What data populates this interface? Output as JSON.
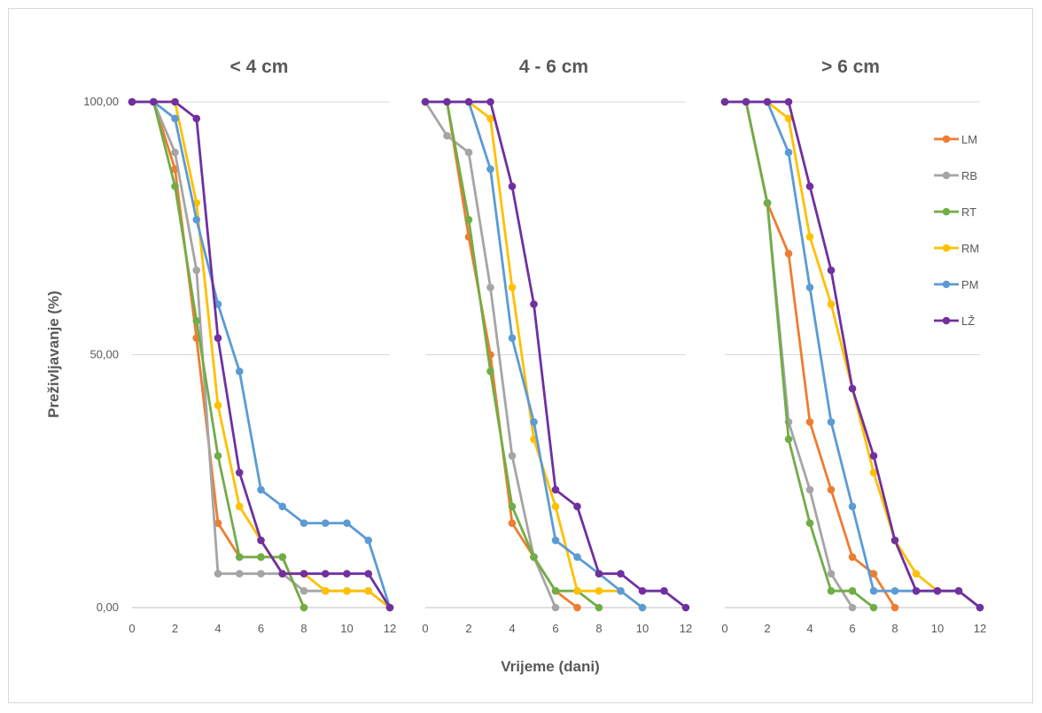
{
  "chart_data": [
    {
      "type": "line",
      "title": "< 4 cm",
      "x": [
        0,
        1,
        2,
        3,
        4,
        5,
        6,
        7,
        8,
        9,
        10,
        11,
        12
      ],
      "ylim": [
        0,
        100
      ],
      "series": [
        {
          "name": "LM",
          "color": "#ED7D31",
          "points": [
            [
              0,
              100
            ],
            [
              1,
              100
            ],
            [
              2,
              86.7
            ],
            [
              3,
              53.3
            ],
            [
              4,
              16.7
            ],
            [
              5,
              10
            ],
            [
              6,
              10
            ],
            [
              7,
              10
            ],
            [
              8,
              0
            ]
          ]
        },
        {
          "name": "RB",
          "color": "#A5A5A5",
          "points": [
            [
              0,
              100
            ],
            [
              1,
              100
            ],
            [
              2,
              90
            ],
            [
              3,
              66.7
            ],
            [
              4,
              6.7
            ],
            [
              5,
              6.7
            ],
            [
              6,
              6.7
            ],
            [
              7,
              6.7
            ],
            [
              8,
              3.3
            ],
            [
              9,
              3.3
            ],
            [
              10,
              3.3
            ],
            [
              11,
              3.3
            ],
            [
              12,
              0
            ]
          ]
        },
        {
          "name": "RT",
          "color": "#70AD47",
          "points": [
            [
              0,
              100
            ],
            [
              1,
              100
            ],
            [
              2,
              83.3
            ],
            [
              3,
              56.7
            ],
            [
              4,
              30
            ],
            [
              5,
              10
            ],
            [
              6,
              10
            ],
            [
              7,
              10
            ],
            [
              8,
              0
            ]
          ]
        },
        {
          "name": "RM",
          "color": "#FFC000",
          "points": [
            [
              0,
              100
            ],
            [
              1,
              100
            ],
            [
              2,
              100
            ],
            [
              3,
              80
            ],
            [
              4,
              40
            ],
            [
              5,
              20
            ],
            [
              6,
              13.3
            ],
            [
              7,
              6.7
            ],
            [
              8,
              6.7
            ],
            [
              9,
              3.3
            ],
            [
              10,
              3.3
            ],
            [
              11,
              3.3
            ],
            [
              12,
              0
            ]
          ]
        },
        {
          "name": "PM",
          "color": "#5B9BD5",
          "points": [
            [
              0,
              100
            ],
            [
              1,
              100
            ],
            [
              2,
              96.7
            ],
            [
              3,
              76.7
            ],
            [
              4,
              60
            ],
            [
              5,
              46.7
            ],
            [
              6,
              23.3
            ],
            [
              7,
              20
            ],
            [
              8,
              16.7
            ],
            [
              9,
              16.7
            ],
            [
              10,
              16.7
            ],
            [
              11,
              13.3
            ],
            [
              12,
              0
            ]
          ]
        },
        {
          "name": "LŽ",
          "color": "#7030A0",
          "points": [
            [
              0,
              100
            ],
            [
              1,
              100
            ],
            [
              2,
              100
            ],
            [
              3,
              96.7
            ],
            [
              4,
              53.3
            ],
            [
              5,
              26.7
            ],
            [
              6,
              13.3
            ],
            [
              7,
              6.7
            ],
            [
              8,
              6.7
            ],
            [
              9,
              6.7
            ],
            [
              10,
              6.7
            ],
            [
              11,
              6.7
            ],
            [
              12,
              0
            ]
          ]
        }
      ]
    },
    {
      "type": "line",
      "title": "4 - 6 cm",
      "x": [
        0,
        1,
        2,
        3,
        4,
        5,
        6,
        7,
        8,
        9,
        10,
        11,
        12
      ],
      "ylim": [
        0,
        100
      ],
      "series": [
        {
          "name": "LM",
          "color": "#ED7D31",
          "points": [
            [
              0,
              100
            ],
            [
              1,
              100
            ],
            [
              2,
              73.3
            ],
            [
              3,
              50
            ],
            [
              4,
              16.7
            ],
            [
              5,
              10
            ],
            [
              6,
              3.3
            ],
            [
              7,
              0
            ]
          ]
        },
        {
          "name": "RB",
          "color": "#A5A5A5",
          "points": [
            [
              0,
              100
            ],
            [
              1,
              93.3
            ],
            [
              2,
              90
            ],
            [
              3,
              63.3
            ],
            [
              4,
              30
            ],
            [
              5,
              10
            ],
            [
              6,
              0
            ]
          ]
        },
        {
          "name": "RT",
          "color": "#70AD47",
          "points": [
            [
              0,
              100
            ],
            [
              1,
              100
            ],
            [
              2,
              76.7
            ],
            [
              3,
              46.7
            ],
            [
              4,
              20
            ],
            [
              5,
              10
            ],
            [
              6,
              3.3
            ],
            [
              7,
              3.3
            ],
            [
              8,
              0
            ]
          ]
        },
        {
          "name": "RM",
          "color": "#FFC000",
          "points": [
            [
              0,
              100
            ],
            [
              1,
              100
            ],
            [
              2,
              100
            ],
            [
              3,
              96.7
            ],
            [
              4,
              63.3
            ],
            [
              5,
              33.3
            ],
            [
              6,
              20
            ],
            [
              7,
              3.3
            ],
            [
              8,
              3.3
            ],
            [
              9,
              3.3
            ],
            [
              10,
              0
            ]
          ]
        },
        {
          "name": "PM",
          "color": "#5B9BD5",
          "points": [
            [
              0,
              100
            ],
            [
              1,
              100
            ],
            [
              2,
              100
            ],
            [
              3,
              86.7
            ],
            [
              4,
              53.3
            ],
            [
              5,
              36.7
            ],
            [
              6,
              13.3
            ],
            [
              7,
              10
            ],
            [
              8,
              6.7
            ],
            [
              9,
              3.3
            ],
            [
              10,
              0
            ]
          ]
        },
        {
          "name": "LŽ",
          "color": "#7030A0",
          "points": [
            [
              0,
              100
            ],
            [
              1,
              100
            ],
            [
              2,
              100
            ],
            [
              3,
              100
            ],
            [
              4,
              83.3
            ],
            [
              5,
              60
            ],
            [
              6,
              23.3
            ],
            [
              7,
              20
            ],
            [
              8,
              6.7
            ],
            [
              9,
              6.7
            ],
            [
              10,
              3.3
            ],
            [
              11,
              3.3
            ],
            [
              12,
              0
            ]
          ]
        }
      ]
    },
    {
      "type": "line",
      "title": "> 6 cm",
      "x": [
        0,
        1,
        2,
        3,
        4,
        5,
        6,
        7,
        8,
        9,
        10,
        11,
        12
      ],
      "ylim": [
        0,
        100
      ],
      "series": [
        {
          "name": "LM",
          "color": "#ED7D31",
          "points": [
            [
              0,
              100
            ],
            [
              1,
              100
            ],
            [
              2,
              80
            ],
            [
              3,
              70
            ],
            [
              4,
              36.7
            ],
            [
              5,
              23.3
            ],
            [
              6,
              10
            ],
            [
              7,
              6.7
            ],
            [
              8,
              0
            ]
          ]
        },
        {
          "name": "RB",
          "color": "#A5A5A5",
          "points": [
            [
              0,
              100
            ],
            [
              1,
              100
            ],
            [
              2,
              80
            ],
            [
              3,
              36.7
            ],
            [
              4,
              23.3
            ],
            [
              5,
              6.7
            ],
            [
              6,
              0
            ]
          ]
        },
        {
          "name": "RT",
          "color": "#70AD47",
          "points": [
            [
              0,
              100
            ],
            [
              1,
              100
            ],
            [
              2,
              80
            ],
            [
              3,
              33.3
            ],
            [
              4,
              16.7
            ],
            [
              5,
              3.3
            ],
            [
              6,
              3.3
            ],
            [
              7,
              0
            ]
          ]
        },
        {
          "name": "RM",
          "color": "#FFC000",
          "points": [
            [
              0,
              100
            ],
            [
              1,
              100
            ],
            [
              2,
              100
            ],
            [
              3,
              96.7
            ],
            [
              4,
              73.3
            ],
            [
              5,
              60
            ],
            [
              6,
              43.3
            ],
            [
              7,
              26.7
            ],
            [
              8,
              13.3
            ],
            [
              9,
              6.7
            ],
            [
              10,
              3.3
            ],
            [
              11,
              3.3
            ],
            [
              12,
              0
            ]
          ]
        },
        {
          "name": "PM",
          "color": "#5B9BD5",
          "points": [
            [
              0,
              100
            ],
            [
              1,
              100
            ],
            [
              2,
              100
            ],
            [
              3,
              90
            ],
            [
              4,
              63.3
            ],
            [
              5,
              36.7
            ],
            [
              6,
              20
            ],
            [
              7,
              3.3
            ],
            [
              8,
              3.3
            ],
            [
              9,
              3.3
            ],
            [
              10,
              3.3
            ],
            [
              11,
              3.3
            ],
            [
              12,
              0
            ]
          ]
        },
        {
          "name": "LŽ",
          "color": "#7030A0",
          "points": [
            [
              0,
              100
            ],
            [
              1,
              100
            ],
            [
              2,
              100
            ],
            [
              3,
              100
            ],
            [
              4,
              83.3
            ],
            [
              5,
              66.7
            ],
            [
              6,
              43.3
            ],
            [
              7,
              30
            ],
            [
              8,
              13.3
            ],
            [
              9,
              3.3
            ],
            [
              10,
              3.3
            ],
            [
              11,
              3.3
            ],
            [
              12,
              0
            ]
          ]
        }
      ]
    }
  ],
  "axes": {
    "ylabel": "Preživljavanje (%)",
    "xlabel": "Vrijeme (dani)",
    "y_ticks": [
      "0,00",
      "50,00",
      "100,00"
    ],
    "y_tick_values": [
      0,
      50,
      100
    ],
    "x_ticks": [
      "0",
      "2",
      "4",
      "6",
      "8",
      "10",
      "12"
    ],
    "x_tick_values": [
      0,
      2,
      4,
      6,
      8,
      10,
      12
    ],
    "gridlines": true
  },
  "legend": {
    "placement": "right",
    "items": [
      "LM",
      "RB",
      "RT",
      "RM",
      "PM",
      "LŽ"
    ]
  }
}
